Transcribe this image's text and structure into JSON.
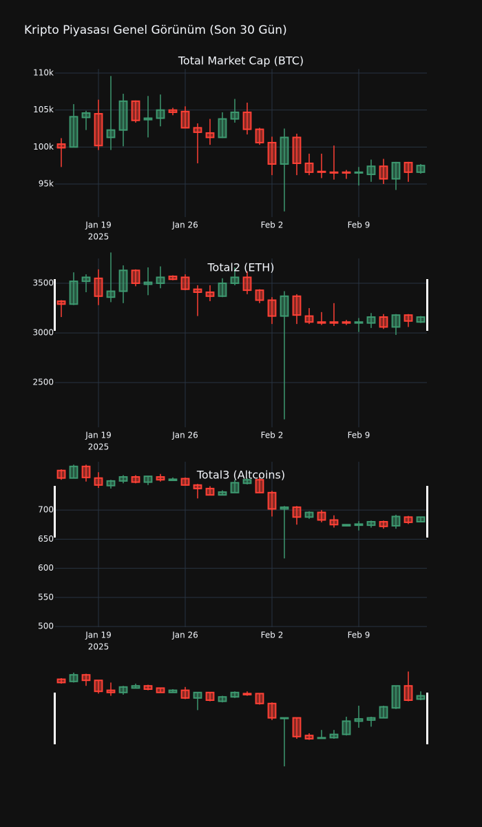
{
  "title": "Kripto Piyasası Genel Görünüm (Son 30 Gün)",
  "chart_data": [
    {
      "type": "candlestick",
      "title": "Total Market Cap (BTC)",
      "x": [
        "2025-01-16",
        "2025-01-17",
        "2025-01-18",
        "2025-01-19",
        "2025-01-20",
        "2025-01-21",
        "2025-01-22",
        "2025-01-23",
        "2025-01-24",
        "2025-01-25",
        "2025-01-26",
        "2025-01-27",
        "2025-01-28",
        "2025-01-29",
        "2025-01-30",
        "2025-01-31",
        "2025-02-01",
        "2025-02-02",
        "2025-02-03",
        "2025-02-04",
        "2025-02-05",
        "2025-02-06",
        "2025-02-07",
        "2025-02-08",
        "2025-02-09",
        "2025-02-10",
        "2025-02-11",
        "2025-02-12",
        "2025-02-13",
        "2025-02-14"
      ],
      "open": [
        100400,
        100000,
        104000,
        104500,
        101300,
        102300,
        106200,
        103700,
        103900,
        105000,
        104800,
        102600,
        101900,
        101300,
        103800,
        104700,
        102400,
        100600,
        97700,
        101300,
        97800,
        96700,
        96600,
        96600,
        96500,
        96300,
        97400,
        95700,
        97900,
        96600
      ],
      "high": [
        101200,
        105800,
        104900,
        106400,
        109600,
        107200,
        106300,
        106900,
        107100,
        105300,
        105500,
        103200,
        103800,
        104700,
        106500,
        106000,
        102600,
        101400,
        102500,
        101800,
        99100,
        99100,
        100200,
        96900,
        97300,
        98300,
        98400,
        98000,
        98000,
        97700
      ],
      "low": [
        97300,
        100000,
        102300,
        99600,
        99600,
        100100,
        103300,
        101300,
        102800,
        104300,
        102500,
        97800,
        100300,
        101200,
        103300,
        101700,
        100300,
        96200,
        91300,
        96200,
        96200,
        95800,
        95600,
        95700,
        94800,
        95300,
        95000,
        94200,
        95300,
        96400
      ],
      "close": [
        99900,
        104100,
        104600,
        100200,
        102300,
        106200,
        103600,
        103900,
        105000,
        104700,
        102600,
        102000,
        101300,
        103800,
        104700,
        102400,
        100600,
        97700,
        101300,
        97800,
        96600,
        96600,
        96500,
        96500,
        96600,
        97400,
        95700,
        97900,
        96600,
        97500
      ],
      "increasing_color": "#3D9970",
      "decreasing_color": "#FF4136",
      "xlim": [
        "2025-01-15T12:00Z",
        "2025-02-14T12:00Z"
      ],
      "xticks": [
        {
          "value": "2025-01-19",
          "label": "Jan 19"
        },
        {
          "value": "2025-01-26",
          "label": "Jan 26"
        },
        {
          "value": "2025-02-02",
          "label": "Feb 2"
        },
        {
          "value": "2025-02-09",
          "label": "Feb 9"
        }
      ],
      "x_year": "2025",
      "ylim": [
        90530,
        110560
      ],
      "yticks": [
        {
          "value": 95000,
          "label": "95k"
        },
        {
          "value": 100000,
          "label": "100k"
        },
        {
          "value": 105000,
          "label": "105k"
        },
        {
          "value": 110000,
          "label": "110k"
        }
      ],
      "grid": true
    },
    {
      "type": "candlestick",
      "title": "Total2 (ETH)",
      "x": [
        "2025-01-16",
        "2025-01-17",
        "2025-01-18",
        "2025-01-19",
        "2025-01-20",
        "2025-01-21",
        "2025-01-22",
        "2025-01-23",
        "2025-01-24",
        "2025-01-25",
        "2025-01-26",
        "2025-01-27",
        "2025-01-28",
        "2025-01-29",
        "2025-01-30",
        "2025-01-31",
        "2025-02-01",
        "2025-02-02",
        "2025-02-03",
        "2025-02-04",
        "2025-02-05",
        "2025-02-06",
        "2025-02-07",
        "2025-02-08",
        "2025-02-09",
        "2025-02-10",
        "2025-02-11",
        "2025-02-12",
        "2025-02-13",
        "2025-02-14"
      ],
      "open": [
        3320,
        3290,
        3520,
        3550,
        3360,
        3420,
        3630,
        3490,
        3500,
        3570,
        3560,
        3440,
        3410,
        3370,
        3500,
        3560,
        3430,
        3330,
        3170,
        3370,
        3170,
        3110,
        3110,
        3110,
        3100,
        3100,
        3160,
        3060,
        3180,
        3110
      ],
      "high": [
        3330,
        3610,
        3590,
        3640,
        3810,
        3680,
        3640,
        3660,
        3670,
        3580,
        3590,
        3480,
        3480,
        3550,
        3660,
        3620,
        3440,
        3360,
        3420,
        3390,
        3250,
        3210,
        3300,
        3130,
        3150,
        3200,
        3190,
        3190,
        3190,
        3170
      ],
      "low": [
        3160,
        3280,
        3410,
        3280,
        3310,
        3300,
        3470,
        3380,
        3450,
        3530,
        3430,
        3170,
        3320,
        3360,
        3480,
        3390,
        3300,
        3090,
        2130,
        3090,
        3090,
        3080,
        3070,
        3080,
        3010,
        3050,
        3040,
        2980,
        3060,
        3100
      ],
      "close": [
        3290,
        3520,
        3560,
        3370,
        3420,
        3630,
        3500,
        3510,
        3560,
        3540,
        3440,
        3410,
        3370,
        3500,
        3560,
        3430,
        3330,
        3170,
        3370,
        3180,
        3110,
        3100,
        3100,
        3100,
        3110,
        3160,
        3060,
        3180,
        3120,
        3160
      ],
      "increasing_color": "#3D9970",
      "decreasing_color": "#FF4136",
      "xlim": [
        "2025-01-15T12:00Z",
        "2025-02-14T12:00Z"
      ],
      "xticks": [
        {
          "value": "2025-01-19",
          "label": "Jan 19"
        },
        {
          "value": "2025-01-26",
          "label": "Jan 26"
        },
        {
          "value": "2025-02-02",
          "label": "Feb 2"
        },
        {
          "value": "2025-02-09",
          "label": "Feb 9"
        }
      ],
      "x_year": "2025",
      "ylim": [
        2050,
        3750
      ],
      "yticks": [
        2500,
        3000,
        3500
      ],
      "grid": true
    },
    {
      "type": "candlestick",
      "title": "Total3 (Altcoins)",
      "x": [
        "2025-01-16",
        "2025-01-17",
        "2025-01-18",
        "2025-01-19",
        "2025-01-20",
        "2025-01-21",
        "2025-01-22",
        "2025-01-23",
        "2025-01-24",
        "2025-01-25",
        "2025-01-26",
        "2025-01-27",
        "2025-01-28",
        "2025-01-29",
        "2025-01-30",
        "2025-01-31",
        "2025-02-01",
        "2025-02-02",
        "2025-02-03",
        "2025-02-04",
        "2025-02-05",
        "2025-02-06",
        "2025-02-07",
        "2025-02-08",
        "2025-02-09",
        "2025-02-10",
        "2025-02-11",
        "2025-02-12",
        "2025-02-13",
        "2025-02-14"
      ],
      "open": [
        768,
        755,
        775,
        755,
        742,
        750,
        757,
        748,
        757,
        751,
        754,
        743,
        737,
        726,
        730,
        746,
        752,
        730,
        702,
        705,
        688,
        696,
        683,
        673,
        674,
        674,
        680,
        673,
        688,
        680
      ],
      "high": [
        770,
        778,
        778,
        765,
        752,
        760,
        760,
        759,
        762,
        756,
        756,
        745,
        741,
        734,
        752,
        755,
        760,
        733,
        707,
        707,
        698,
        700,
        691,
        676,
        681,
        682,
        682,
        692,
        690,
        689
      ],
      "low": [
        752,
        754,
        749,
        738,
        737,
        746,
        746,
        743,
        749,
        750,
        742,
        720,
        725,
        725,
        730,
        744,
        729,
        689,
        617,
        675,
        685,
        679,
        670,
        672,
        665,
        670,
        668,
        668,
        676,
        679
      ],
      "close": [
        755,
        775,
        756,
        743,
        750,
        757,
        748,
        758,
        752,
        753,
        743,
        737,
        726,
        731,
        747,
        752,
        730,
        702,
        705,
        688,
        696,
        683,
        675,
        675,
        676,
        680,
        672,
        689,
        679,
        688
      ],
      "increasing_color": "#3D9970",
      "decreasing_color": "#FF4136",
      "xlim": [
        "2025-01-15T12:00Z",
        "2025-02-14T12:00Z"
      ],
      "xticks": [
        {
          "value": "2025-01-19",
          "label": "Jan 19"
        },
        {
          "value": "2025-01-26",
          "label": "Jan 26"
        },
        {
          "value": "2025-02-02",
          "label": "Feb 2"
        },
        {
          "value": "2025-02-09",
          "label": "Feb 9"
        }
      ],
      "x_year": "2025",
      "ylim": [
        499,
        783
      ],
      "yticks": [
        500,
        550,
        600,
        650,
        700
      ],
      "grid": true
    },
    {
      "type": "candlestick",
      "x": [
        "2025-01-16",
        "2025-01-17",
        "2025-01-18",
        "2025-01-19",
        "2025-01-20",
        "2025-01-21",
        "2025-01-22",
        "2025-01-23",
        "2025-01-24",
        "2025-01-25",
        "2025-01-26",
        "2025-01-27",
        "2025-01-28",
        "2025-01-29",
        "2025-01-30",
        "2025-01-31",
        "2025-02-01",
        "2025-02-02",
        "2025-02-03",
        "2025-02-04",
        "2025-02-05",
        "2025-02-06",
        "2025-02-07",
        "2025-02-08",
        "2025-02-09",
        "2025-02-10",
        "2025-02-11",
        "2025-02-12",
        "2025-02-13",
        "2025-02-14"
      ],
      "open": [
        84,
        82,
        88,
        83,
        74,
        72,
        76,
        78,
        76,
        72,
        74,
        67,
        72,
        64,
        68,
        71,
        71,
        62,
        49,
        49,
        33,
        31,
        31,
        34,
        46,
        47,
        49,
        58,
        78,
        66
      ],
      "high": [
        85,
        90,
        89,
        83,
        81,
        78,
        80,
        79,
        76,
        75,
        77,
        72,
        72,
        69,
        73,
        73,
        71,
        63,
        49,
        49,
        35,
        38,
        38,
        50,
        60,
        50,
        60,
        78,
        91,
        73
      ],
      "low": [
        80,
        81,
        78,
        71,
        69,
        70,
        76,
        74,
        72,
        72,
        66,
        56,
        64,
        63,
        67,
        69,
        61,
        47,
        5,
        30,
        29,
        30,
        30,
        33,
        40,
        41,
        49,
        57,
        64,
        65
      ],
      "close": [
        81,
        88,
        83,
        73,
        72,
        77,
        78,
        75,
        72,
        74,
        67,
        72,
        65,
        68,
        72,
        70,
        62,
        49,
        49,
        32,
        30,
        31,
        34,
        46,
        48,
        49,
        59,
        78,
        65,
        69
      ],
      "increasing_color": "#3D9970",
      "decreasing_color": "#FF4136",
      "xlim": [
        "2025-01-15T12:00Z",
        "2025-02-14T12:00Z"
      ],
      "ylim": [
        0,
        100
      ],
      "grid": false
    }
  ]
}
